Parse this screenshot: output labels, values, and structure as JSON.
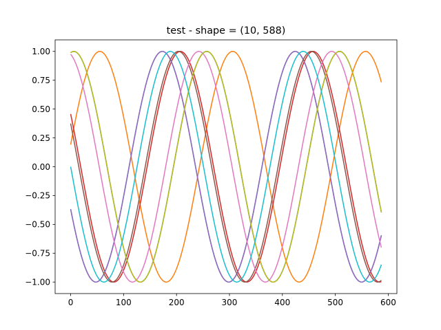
{
  "chart_data": {
    "type": "line",
    "title": "test - shape = (10, 588)",
    "xlabel": "",
    "ylabel": "",
    "xlim": [
      -29.35,
      616.35
    ],
    "ylim": [
      -1.1,
      1.1
    ],
    "x_ticks": [
      0,
      100,
      200,
      300,
      400,
      500,
      600
    ],
    "y_ticks": [
      -1.0,
      -0.75,
      -0.5,
      -0.25,
      0.0,
      0.25,
      0.5,
      0.75,
      1.0
    ],
    "y_tick_labels": [
      "−1.00",
      "−0.75",
      "−0.50",
      "−0.25",
      "0.00",
      "0.25",
      "0.50",
      "0.75",
      "1.00"
    ],
    "grid": false,
    "legend": "none",
    "x_range": [
      0,
      587
    ],
    "series": [
      {
        "color": "#1f77b4",
        "amplitude": 1.0,
        "period": 251,
        "phase_rad": 3.5185
      },
      {
        "color": "#ff7f0e",
        "amplitude": 1.0,
        "period": 251,
        "phase_rad": 0.1924
      },
      {
        "color": "#2ca02c",
        "amplitude": 1.0,
        "period": 251,
        "phase_rad": 1.4204
      },
      {
        "color": "#d62728",
        "amplitude": 1.0,
        "period": 251,
        "phase_rad": 2.6668
      },
      {
        "color": "#9467bd",
        "amplitude": 1.0,
        "period": 251,
        "phase_rad": 3.5185
      },
      {
        "color": "#8c564b",
        "amplitude": 1.0,
        "period": 251,
        "phase_rad": 2.7578
      },
      {
        "color": "#e377c2",
        "amplitude": 1.0,
        "period": 251,
        "phase_rad": 1.791
      },
      {
        "color": "#7f7f7f",
        "amplitude": 1.0,
        "period": 251,
        "phase_rad": 1.4204
      },
      {
        "color": "#bcbd22",
        "amplitude": 1.0,
        "period": 251,
        "phase_rad": 1.4204
      },
      {
        "color": "#17becf",
        "amplitude": 1.0,
        "period": 251,
        "phase_rad": 3.1416
      }
    ]
  }
}
